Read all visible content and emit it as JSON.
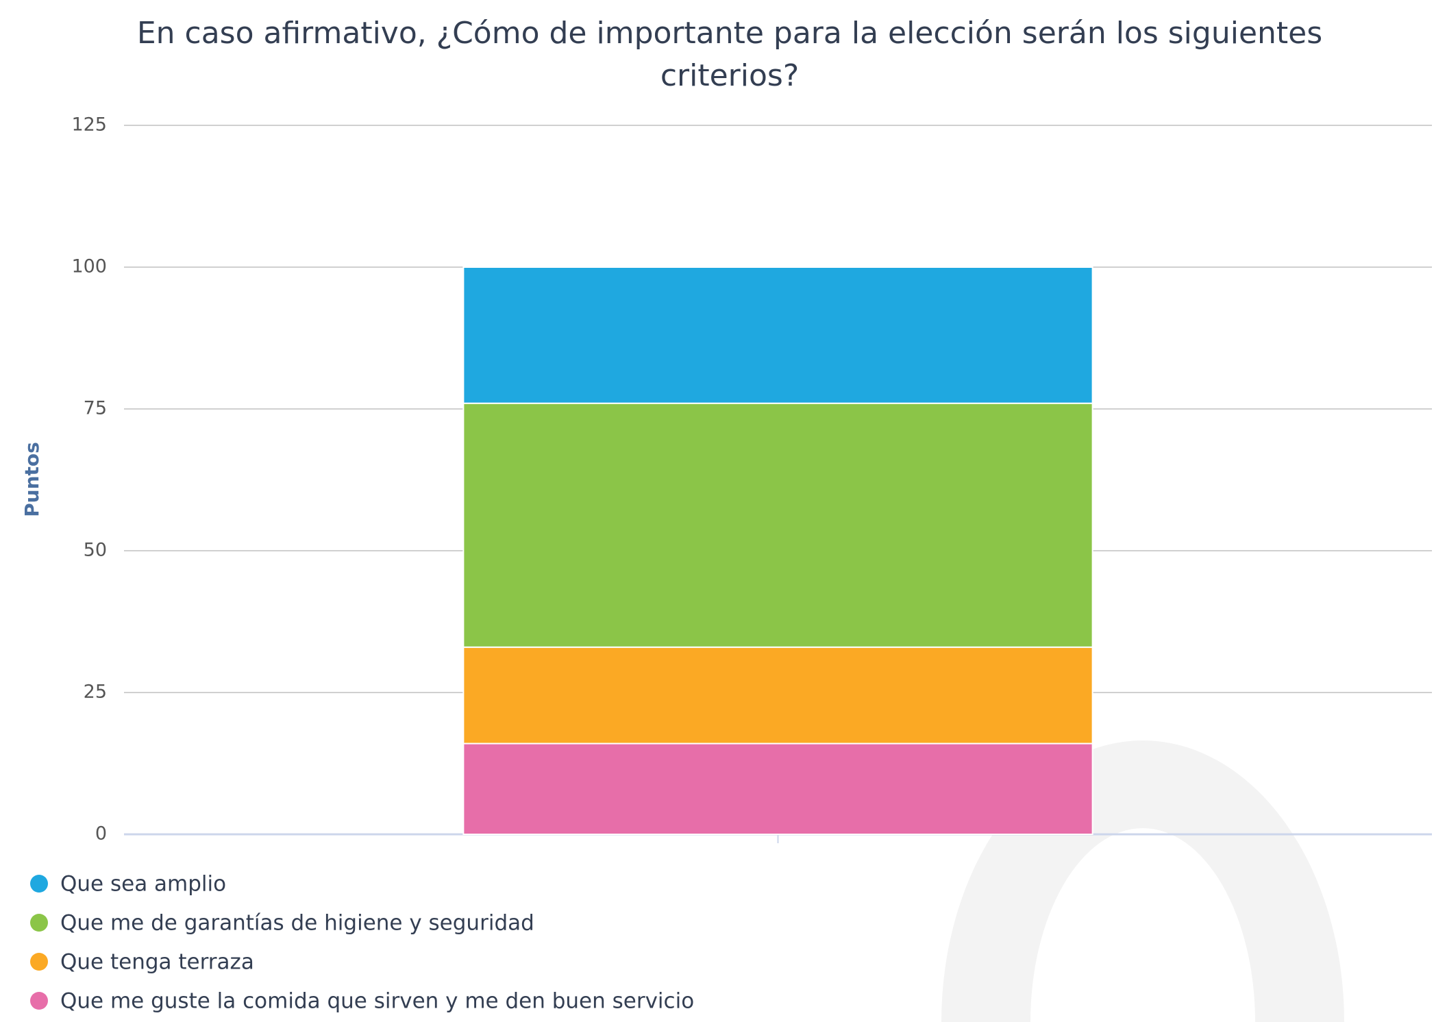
{
  "chart_data": {
    "type": "stacked_bar",
    "title": "En caso afirmativo, ¿Cómo de importante para la elección serán los siguientes criterios?",
    "y_label": "Puntos",
    "categories": [
      null
    ],
    "series": [
      {
        "name": "Que sea amplio",
        "color": "#1fa8e0",
        "values": [
          24
        ]
      },
      {
        "name": "Que me de garantías de higiene y seguridad",
        "color": "#8bc548",
        "values": [
          43
        ]
      },
      {
        "name": "Que tenga terraza",
        "color": "#fba924",
        "values": [
          17
        ]
      },
      {
        "name": "Que me guste la comida que sirven y me den buen servicio",
        "color": "#e76ea9",
        "values": [
          16
        ]
      }
    ],
    "ylim": [
      0,
      125
    ],
    "yticks": [
      0,
      25,
      50,
      75,
      100,
      125
    ],
    "grid": true,
    "legend": "bottom-left"
  }
}
